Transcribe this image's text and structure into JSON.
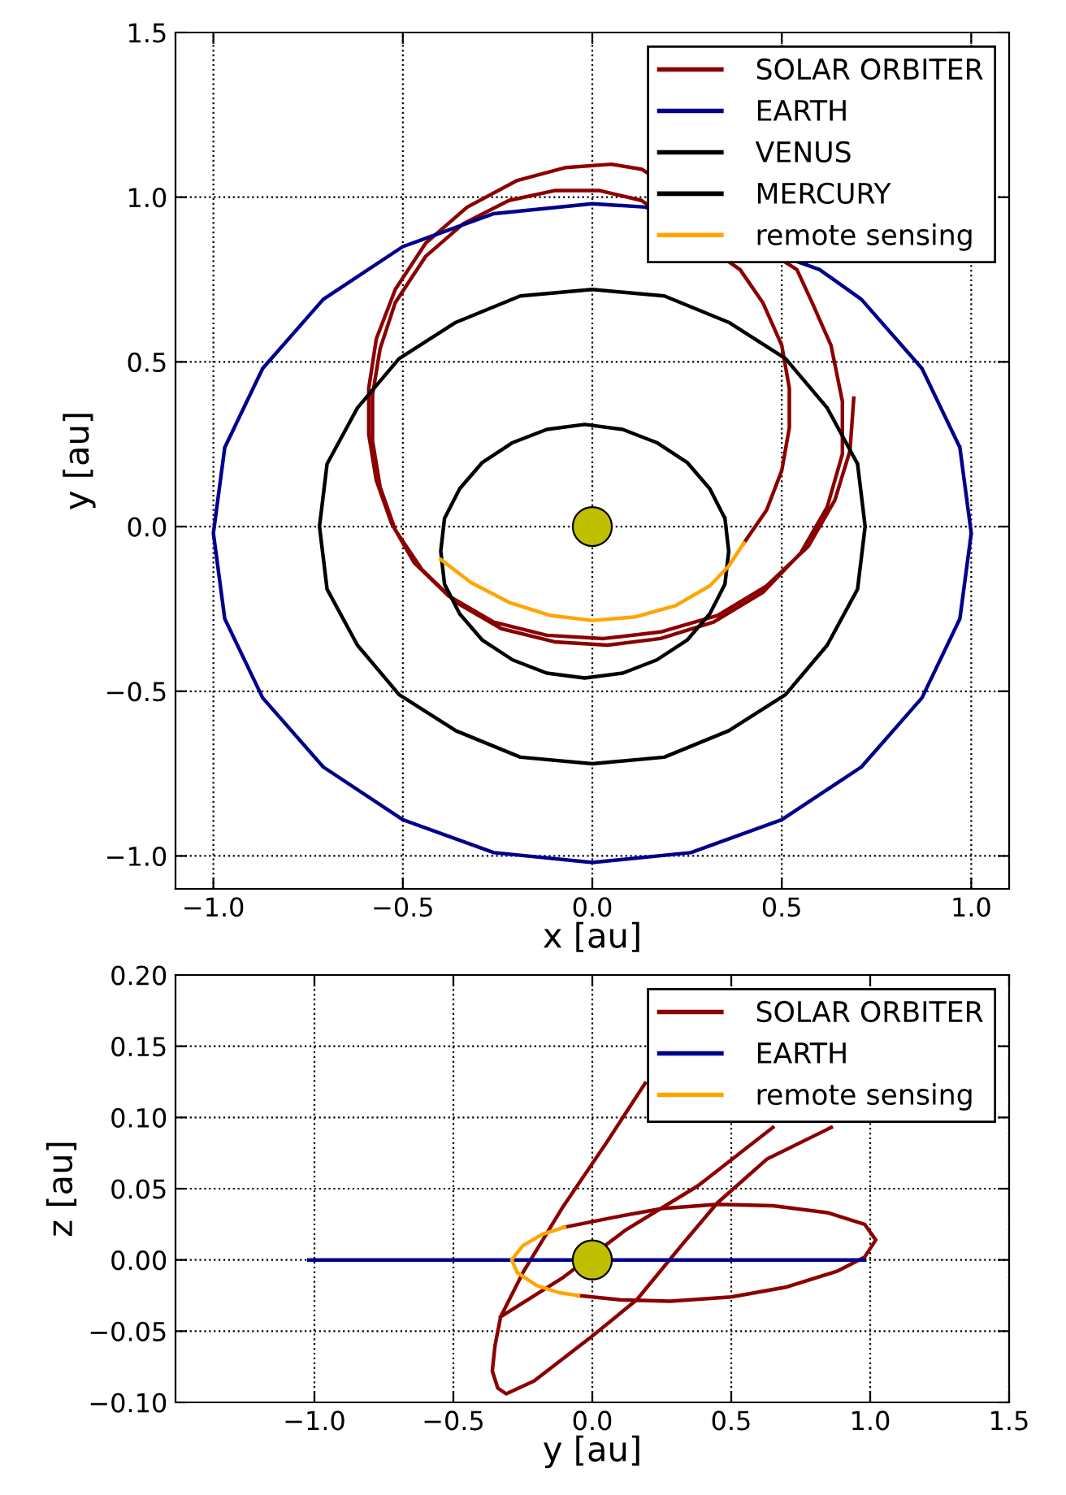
{
  "chart_data": [
    {
      "type": "line",
      "xlabel": "x [au]",
      "ylabel": "y [au]",
      "xlim": [
        -1.1,
        1.1
      ],
      "ylim": [
        -1.1,
        1.5
      ],
      "xticks": [
        {
          "value": -1.0,
          "label": "−1.0"
        },
        {
          "value": -0.5,
          "label": "−0.5"
        },
        {
          "value": 0,
          "label": "0.0"
        },
        {
          "value": 0.5,
          "label": "0.5"
        },
        {
          "value": 1.0,
          "label": "1.0"
        }
      ],
      "yticks": [
        {
          "value": -1.0,
          "label": "−1.0"
        },
        {
          "value": -0.5,
          "label": "−0.5"
        },
        {
          "value": 0,
          "label": "0.0"
        },
        {
          "value": 0.5,
          "label": "0.5"
        },
        {
          "value": 1.0,
          "label": "1.0"
        },
        {
          "value": 1.5,
          "label": "1.5"
        }
      ],
      "grid": true,
      "legend": "top right",
      "series": [
        {
          "name": "SOLAR ORBITER",
          "color": "#8b0000",
          "x": [
            0.4,
            0.46,
            0.5,
            0.52,
            0.52,
            0.5,
            0.45,
            0.39,
            0.13,
            0.02,
            -0.1,
            -0.22,
            -0.34,
            -0.44,
            -0.52,
            -0.56,
            -0.58,
            -0.58,
            -0.56,
            -0.52,
            -0.45,
            -0.36,
            -0.24,
            -0.1,
            0.04,
            0.18,
            0.32,
            0.45,
            0.55,
            0.62,
            0.66,
            0.66,
            0.63,
            0.58,
            0.54,
            0.13,
            0.05,
            -0.07,
            -0.2,
            -0.33,
            -0.44,
            -0.52,
            -0.57,
            -0.59,
            -0.59,
            -0.57,
            -0.53,
            -0.47,
            -0.38,
            -0.26,
            -0.12,
            0.03,
            0.18,
            0.33,
            0.46,
            0.57,
            0.64,
            0.68,
            0.69
          ],
          "values": [
            -0.05,
            0.05,
            0.17,
            0.3,
            0.42,
            0.55,
            0.68,
            0.78,
            0.99,
            1.02,
            1.02,
            0.99,
            0.92,
            0.82,
            0.68,
            0.54,
            0.4,
            0.26,
            0.12,
            -0.01,
            -0.13,
            -0.23,
            -0.31,
            -0.35,
            -0.36,
            -0.34,
            -0.29,
            -0.2,
            -0.08,
            0.06,
            0.22,
            0.38,
            0.55,
            0.68,
            0.78,
            1.085,
            1.1,
            1.09,
            1.05,
            0.97,
            0.86,
            0.72,
            0.57,
            0.42,
            0.28,
            0.14,
            0.01,
            -0.11,
            -0.21,
            -0.29,
            -0.33,
            -0.34,
            -0.32,
            -0.27,
            -0.18,
            -0.06,
            0.08,
            0.23,
            0.39
          ]
        },
        {
          "name": "EARTH",
          "color": "#00008b",
          "x": [
            1.0,
            0.97,
            0.87,
            0.71,
            0.6,
            0.14,
            0,
            -0.26,
            -0.5,
            -0.71,
            -0.87,
            -0.97,
            -1.0,
            -0.97,
            -0.87,
            -0.71,
            -0.5,
            -0.26,
            0,
            0.26,
            0.5,
            0.71,
            0.87,
            0.97,
            1.0,
            0.97
          ],
          "values": [
            -0.02,
            0.24,
            0.48,
            0.69,
            0.78,
            0.97,
            0.98,
            0.95,
            0.85,
            0.69,
            0.48,
            0.24,
            -0.02,
            -0.28,
            -0.52,
            -0.73,
            -0.89,
            -0.99,
            -1.02,
            -0.99,
            -0.89,
            -0.73,
            -0.52,
            -0.28,
            -0.02,
            0.24
          ]
        },
        {
          "name": "VENUS",
          "color": "#000000",
          "x": [
            0.72,
            0.7,
            0.62,
            0.51,
            0.36,
            0.19,
            0,
            -0.19,
            -0.36,
            -0.51,
            -0.62,
            -0.7,
            -0.72,
            -0.7,
            -0.62,
            -0.51,
            -0.36,
            -0.19,
            0,
            0.19,
            0.36,
            0.51,
            0.62,
            0.7,
            0.72,
            0.7
          ],
          "values": [
            0,
            0.19,
            0.36,
            0.51,
            0.62,
            0.7,
            0.72,
            0.7,
            0.62,
            0.51,
            0.36,
            0.19,
            0,
            -0.19,
            -0.36,
            -0.51,
            -0.62,
            -0.7,
            -0.72,
            -0.7,
            -0.62,
            -0.51,
            -0.36,
            -0.19,
            0,
            0.19
          ]
        },
        {
          "name": "MERCURY",
          "color": "#000000",
          "x": [
            0.36,
            0.35,
            0.31,
            0.25,
            0.17,
            0.08,
            -0.02,
            -0.12,
            -0.21,
            -0.29,
            -0.35,
            -0.39,
            -0.4,
            -0.39,
            -0.35,
            -0.29,
            -0.21,
            -0.12,
            -0.02,
            0.08,
            0.17,
            0.25,
            0.31,
            0.35,
            0.36,
            0.35
          ],
          "values": [
            -0.075,
            0.025,
            0.115,
            0.195,
            0.255,
            0.295,
            0.31,
            0.295,
            0.255,
            0.195,
            0.115,
            0.025,
            -0.075,
            -0.175,
            -0.265,
            -0.345,
            -0.405,
            -0.445,
            -0.46,
            -0.445,
            -0.405,
            -0.345,
            -0.265,
            -0.175,
            -0.075,
            0.025
          ]
        },
        {
          "name": "remote sensing",
          "color": "#ffa500",
          "x": [
            -0.4,
            -0.32,
            -0.22,
            -0.11,
            0,
            0.11,
            0.22,
            0.31,
            0.36,
            0.4
          ],
          "values": [
            -0.1,
            -0.17,
            -0.23,
            -0.27,
            -0.285,
            -0.275,
            -0.24,
            -0.18,
            -0.12,
            -0.05
          ]
        },
        {
          "type": "scatter",
          "color": "#bfbf00",
          "marker": "circle",
          "x": [
            0
          ],
          "values": [
            0
          ]
        }
      ]
    },
    {
      "type": "line",
      "xlabel": "y [au]",
      "ylabel": "z [au]",
      "xlim": [
        -1.5,
        1.5
      ],
      "ylim": [
        -0.1,
        0.2
      ],
      "xticks": [
        {
          "value": -1.0,
          "label": "−1.0"
        },
        {
          "value": -0.5,
          "label": "−0.5"
        },
        {
          "value": 0,
          "label": "0.0"
        },
        {
          "value": 0.5,
          "label": "0.5"
        },
        {
          "value": 1.0,
          "label": "1.0"
        },
        {
          "value": 1.5,
          "label": "1.5"
        }
      ],
      "yticks": [
        {
          "value": -0.1,
          "label": "−0.10"
        },
        {
          "value": -0.05,
          "label": "−0.05"
        },
        {
          "value": 0,
          "label": "0.00"
        },
        {
          "value": 0.05,
          "label": "0.05"
        },
        {
          "value": 0.1,
          "label": "0.10"
        },
        {
          "value": 0.15,
          "label": "0.15"
        },
        {
          "value": 0.2,
          "label": "0.20"
        }
      ],
      "grid": true,
      "legend": "top right",
      "series": [
        {
          "name": "SOLAR ORBITER",
          "color": "#8b0000",
          "x": [
            -0.05,
            0.1,
            0.28,
            0.5,
            0.7,
            0.88,
            0.98,
            1.02,
            0.98,
            0.85,
            0.65,
            0.45,
            0.25,
            0.08,
            -0.1,
            null,
            0.19,
            0.05,
            -0.11,
            -0.25,
            -0.33,
            -0.35,
            -0.36,
            -0.34,
            -0.31,
            -0.21,
            -0.01,
            0.16,
            0.32,
            0.45,
            0.63,
            0.86,
            null,
            0.65,
            0.38,
            0.12,
            -0.11,
            -0.33
          ],
          "values": [
            -0.025,
            -0.028,
            -0.029,
            -0.026,
            -0.019,
            -0.008,
            0.002,
            0.014,
            0.025,
            0.033,
            0.038,
            0.039,
            0.036,
            0.03,
            0.023,
            null,
            0.124,
            0.082,
            0.036,
            -0.009,
            -0.04,
            -0.06,
            -0.078,
            -0.09,
            -0.094,
            -0.085,
            -0.055,
            -0.028,
            0.01,
            0.04,
            0.071,
            0.093,
            null,
            0.093,
            0.052,
            0.021,
            -0.013,
            -0.04
          ]
        },
        {
          "name": "EARTH",
          "color": "#00008b",
          "x": [
            -1.02,
            0.98
          ],
          "values": [
            0,
            0
          ]
        },
        {
          "name": "remote sensing",
          "color": "#ffa500",
          "x": [
            -0.1,
            -0.18,
            -0.25,
            -0.29,
            -0.27,
            -0.2,
            -0.12,
            -0.05
          ],
          "values": [
            0.023,
            0.018,
            0.01,
            0.0,
            -0.009,
            -0.018,
            -0.023,
            -0.025
          ]
        },
        {
          "type": "scatter",
          "color": "#bfbf00",
          "marker": "circle",
          "x": [
            0
          ],
          "values": [
            0
          ]
        }
      ]
    }
  ]
}
